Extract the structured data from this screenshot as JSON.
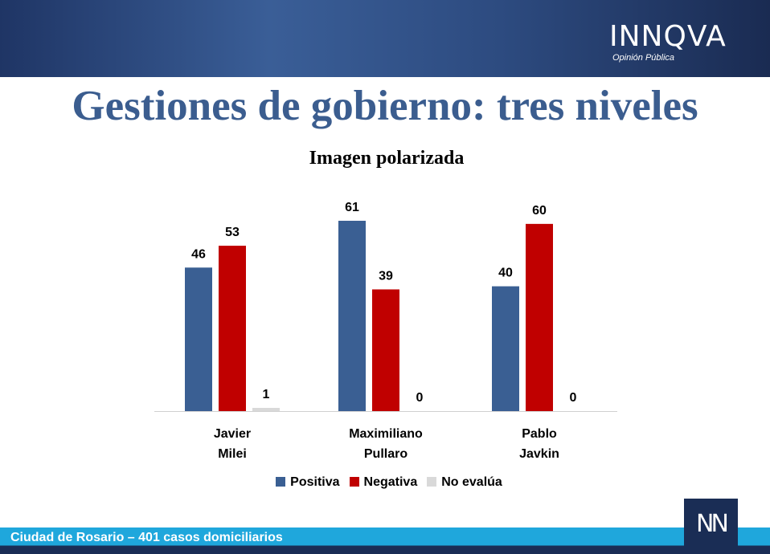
{
  "header": {
    "logo_text": "INNQVA",
    "logo_subtitle": "Opinión Pública"
  },
  "page_title": "Gestiones de gobierno: tres niveles",
  "chart_data": {
    "type": "bar",
    "title": "Imagen polarizada",
    "categories": [
      [
        "Javier",
        "Milei"
      ],
      [
        "Maximiliano",
        "Pullaro"
      ],
      [
        "Pablo",
        "Javkin"
      ]
    ],
    "series": [
      {
        "name": "Positiva",
        "color": "#3a5f93",
        "values": [
          46,
          61,
          40
        ]
      },
      {
        "name": "Negativa",
        "color": "#c00000",
        "values": [
          53,
          39,
          60
        ]
      },
      {
        "name": "No evalúa",
        "color": "#d9d9d9",
        "values": [
          1,
          0,
          0
        ]
      }
    ],
    "ylim": [
      0,
      70
    ],
    "grid": false,
    "legend_position": "bottom"
  },
  "footer": {
    "text": "Ciudad de Rosario – 401 casos domiciliarios",
    "corner_logo": "NN"
  }
}
